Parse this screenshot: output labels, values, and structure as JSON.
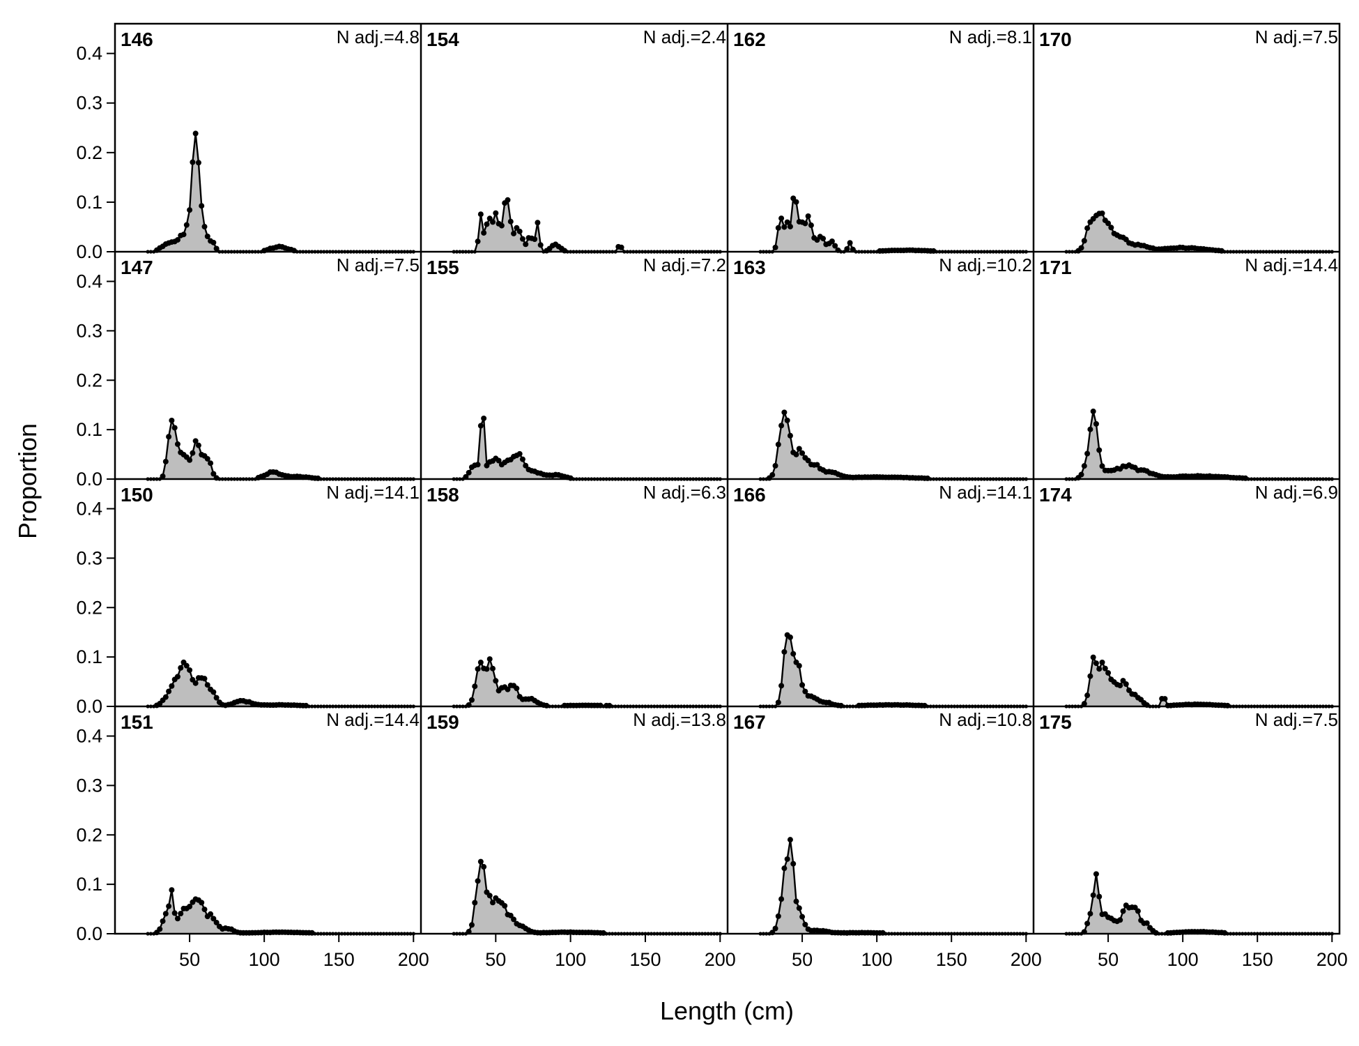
{
  "chart_data": {
    "type": "area",
    "xlabel": "Length (cm)",
    "ylabel": "Proportion",
    "xlim": [
      0,
      205
    ],
    "ylim": [
      0,
      0.46
    ],
    "xticks": [
      50,
      100,
      150,
      200
    ],
    "yticks": [
      0.0,
      0.1,
      0.2,
      0.3,
      0.4
    ],
    "ytick_labels": [
      "0.0",
      "0.1",
      "0.2",
      "0.3",
      "0.4"
    ],
    "grid": false,
    "legend": "none",
    "colors": {
      "fill": "#bebebe",
      "line": "#000000",
      "frame": "#000000"
    },
    "panels": [
      {
        "id": "146",
        "n_label": "N adj.=4.8",
        "row": 0,
        "col": 0,
        "peaks": [
          [
            35,
            0.015,
            4
          ],
          [
            45,
            0.03,
            4
          ],
          [
            52,
            0.1,
            2.5
          ],
          [
            55,
            0.17,
            2
          ],
          [
            60,
            0.04,
            2
          ],
          [
            65,
            0.02,
            2
          ],
          [
            110,
            0.01,
            6
          ]
        ]
      },
      {
        "id": "154",
        "n_label": "N adj.=2.4",
        "row": 0,
        "col": 1,
        "peaks": [
          [
            40,
            0.08,
            1.2
          ],
          [
            45,
            0.06,
            2
          ],
          [
            50,
            0.07,
            2
          ],
          [
            55,
            0.04,
            2
          ],
          [
            58,
            0.09,
            2
          ],
          [
            65,
            0.05,
            2.5
          ],
          [
            73,
            0.03,
            2
          ],
          [
            78,
            0.06,
            1.2
          ],
          [
            90,
            0.015,
            3
          ],
          [
            133,
            0.015,
            1
          ]
        ]
      },
      {
        "id": "162",
        "n_label": "N adj.=8.1",
        "row": 0,
        "col": 2,
        "peaks": [
          [
            35,
            0.05,
            1.5
          ],
          [
            40,
            0.055,
            3
          ],
          [
            45,
            0.11,
            1.2
          ],
          [
            50,
            0.06,
            3
          ],
          [
            55,
            0.05,
            2
          ],
          [
            62,
            0.03,
            3
          ],
          [
            70,
            0.02,
            2
          ],
          [
            82,
            0.02,
            1.2
          ],
          [
            120,
            0.003,
            15
          ]
        ]
      },
      {
        "id": "170",
        "n_label": "N adj.=7.5",
        "row": 0,
        "col": 3,
        "peaks": [
          [
            38,
            0.06,
            3
          ],
          [
            45,
            0.075,
            3
          ],
          [
            52,
            0.04,
            3
          ],
          [
            60,
            0.025,
            4
          ],
          [
            72,
            0.012,
            5
          ],
          [
            100,
            0.008,
            15
          ]
        ]
      },
      {
        "id": "147",
        "n_label": "N adj.=7.5",
        "row": 1,
        "col": 0,
        "peaks": [
          [
            38,
            0.11,
            2.5
          ],
          [
            45,
            0.05,
            4
          ],
          [
            55,
            0.07,
            3
          ],
          [
            62,
            0.04,
            2.5
          ],
          [
            105,
            0.012,
            5
          ],
          [
            120,
            0.005,
            10
          ]
        ]
      },
      {
        "id": "155",
        "n_label": "N adj.=7.2",
        "row": 1,
        "col": 1,
        "peaks": [
          [
            36,
            0.03,
            3
          ],
          [
            41,
            0.14,
            1.2
          ],
          [
            48,
            0.035,
            4
          ],
          [
            58,
            0.025,
            5
          ],
          [
            65,
            0.04,
            4
          ],
          [
            75,
            0.015,
            5
          ],
          [
            90,
            0.008,
            6
          ]
        ]
      },
      {
        "id": "163",
        "n_label": "N adj.=10.2",
        "row": 1,
        "col": 2,
        "peaks": [
          [
            38,
            0.12,
            3.5
          ],
          [
            48,
            0.05,
            4
          ],
          [
            58,
            0.025,
            5
          ],
          [
            70,
            0.01,
            5
          ],
          [
            100,
            0.004,
            25
          ]
        ]
      },
      {
        "id": "171",
        "n_label": "N adj.=14.4",
        "row": 1,
        "col": 3,
        "peaks": [
          [
            37,
            0.04,
            3
          ],
          [
            41,
            0.12,
            2.5
          ],
          [
            50,
            0.015,
            4
          ],
          [
            62,
            0.025,
            6
          ],
          [
            75,
            0.012,
            6
          ],
          [
            110,
            0.006,
            20
          ]
        ]
      },
      {
        "id": "150",
        "n_label": "N adj.=14.1",
        "row": 2,
        "col": 0,
        "peaks": [
          [
            40,
            0.04,
            5
          ],
          [
            48,
            0.07,
            4
          ],
          [
            58,
            0.055,
            3
          ],
          [
            65,
            0.03,
            3
          ],
          [
            85,
            0.01,
            6
          ],
          [
            110,
            0.003,
            15
          ]
        ]
      },
      {
        "id": "158",
        "n_label": "N adj.=6.3",
        "row": 2,
        "col": 1,
        "peaks": [
          [
            40,
            0.09,
            3
          ],
          [
            47,
            0.085,
            2.5
          ],
          [
            55,
            0.035,
            3
          ],
          [
            62,
            0.04,
            2.5
          ],
          [
            72,
            0.015,
            5
          ],
          [
            110,
            0.002,
            20
          ]
        ]
      },
      {
        "id": "166",
        "n_label": "N adj.=14.1",
        "row": 2,
        "col": 2,
        "peaks": [
          [
            40,
            0.15,
            2.5
          ],
          [
            46,
            0.09,
            3
          ],
          [
            55,
            0.02,
            4
          ],
          [
            65,
            0.008,
            5
          ],
          [
            110,
            0.003,
            20
          ]
        ]
      },
      {
        "id": "174",
        "n_label": "N adj.=6.9",
        "row": 2,
        "col": 3,
        "peaks": [
          [
            40,
            0.09,
            2.5
          ],
          [
            46,
            0.08,
            2.5
          ],
          [
            52,
            0.05,
            3
          ],
          [
            60,
            0.05,
            3
          ],
          [
            68,
            0.02,
            4
          ],
          [
            87,
            0.025,
            1
          ],
          [
            110,
            0.004,
            15
          ]
        ]
      },
      {
        "id": "151",
        "n_label": "N adj.=14.4",
        "row": 3,
        "col": 0,
        "peaks": [
          [
            35,
            0.04,
            3
          ],
          [
            38,
            0.07,
            1.2
          ],
          [
            45,
            0.04,
            3
          ],
          [
            52,
            0.065,
            3
          ],
          [
            58,
            0.05,
            2.5
          ],
          [
            65,
            0.035,
            3
          ],
          [
            75,
            0.01,
            4
          ],
          [
            110,
            0.003,
            20
          ]
        ]
      },
      {
        "id": "159",
        "n_label": "N adj.=13.8",
        "row": 3,
        "col": 1,
        "peaks": [
          [
            40,
            0.14,
            3
          ],
          [
            48,
            0.06,
            4
          ],
          [
            56,
            0.04,
            4
          ],
          [
            65,
            0.015,
            5
          ],
          [
            100,
            0.003,
            20
          ]
        ]
      },
      {
        "id": "167",
        "n_label": "N adj.=10.8",
        "row": 3,
        "col": 2,
        "peaks": [
          [
            38,
            0.08,
            3
          ],
          [
            42,
            0.14,
            2.5
          ],
          [
            48,
            0.04,
            3
          ],
          [
            60,
            0.006,
            6
          ],
          [
            90,
            0.002,
            20
          ]
        ]
      },
      {
        "id": "175",
        "n_label": "N adj.=7.5",
        "row": 3,
        "col": 3,
        "peaks": [
          [
            38,
            0.03,
            2
          ],
          [
            42,
            0.1,
            1.8
          ],
          [
            48,
            0.04,
            3
          ],
          [
            55,
            0.02,
            3
          ],
          [
            62,
            0.06,
            2.5
          ],
          [
            68,
            0.055,
            2.5
          ],
          [
            75,
            0.02,
            3
          ],
          [
            110,
            0.004,
            15
          ]
        ]
      }
    ]
  }
}
